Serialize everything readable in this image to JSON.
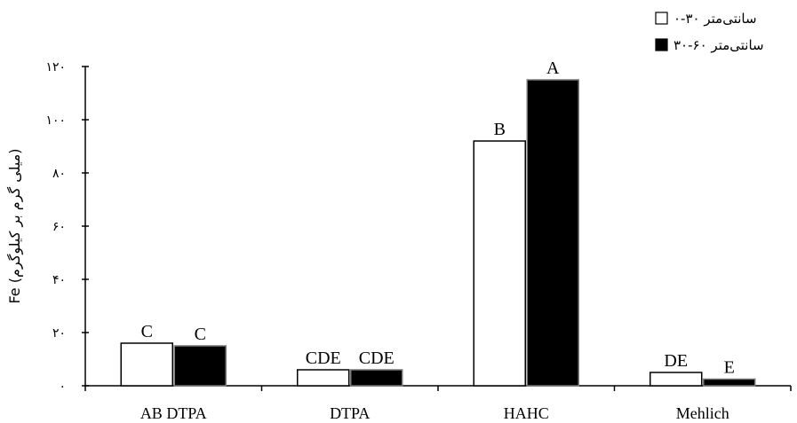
{
  "chart_data": {
    "type": "bar",
    "categories": [
      "AB DTPA",
      "DTPA",
      "HAHC",
      "Mehlich"
    ],
    "series": [
      {
        "name": "۰-۳۰ سانتی‌متر",
        "color": "#ffffff",
        "values": [
          16,
          6,
          92,
          5
        ],
        "labels": [
          "C",
          "CDE",
          "B",
          "DE"
        ]
      },
      {
        "name": "۳۰-۶۰ سانتی‌متر",
        "color": "#000000",
        "values": [
          15,
          6,
          115,
          2.5
        ],
        "labels": [
          "C",
          "CDE",
          "A",
          "E"
        ]
      }
    ],
    "ylabel": "Fe (میلی گرم بر کیلوگرم)",
    "ylim": [
      0,
      120
    ],
    "yticks": [
      {
        "value": 0,
        "label": "۰"
      },
      {
        "value": 20,
        "label": "۲۰"
      },
      {
        "value": 40,
        "label": "۴۰"
      },
      {
        "value": 60,
        "label": "۶۰"
      },
      {
        "value": 80,
        "label": "۸۰"
      },
      {
        "value": 100,
        "label": "۱۰۰"
      },
      {
        "value": 120,
        "label": "۱۲۰"
      }
    ],
    "grid": false,
    "legend_position": "top-right"
  }
}
